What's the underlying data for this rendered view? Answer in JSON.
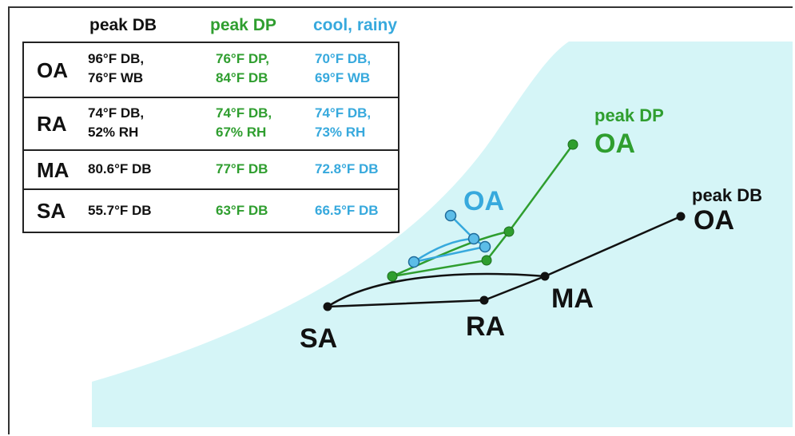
{
  "colors": {
    "background_region": "#d5f5f7",
    "black": "#111111",
    "green": "#2f9e2f",
    "blue": "#37a9dd"
  },
  "table": {
    "headers": {
      "peak_db": "peak DB",
      "peak_dp": "peak DP",
      "cool_rainy": "cool, rainy"
    },
    "rows": [
      {
        "label": "OA",
        "peak_db": [
          "96°F DB,",
          "76°F WB"
        ],
        "peak_dp": [
          "76°F DP,",
          "84°F DB"
        ],
        "cool_rainy": [
          "70°F DB,",
          "69°F WB"
        ]
      },
      {
        "label": "RA",
        "peak_db": [
          "74°F DB,",
          "52% RH"
        ],
        "peak_dp": [
          "74°F DB,",
          "67% RH"
        ],
        "cool_rainy": [
          "74°F DB,",
          "73% RH"
        ]
      },
      {
        "label": "MA",
        "peak_db": [
          "80.6°F DB"
        ],
        "peak_dp": [
          "77°F DB"
        ],
        "cool_rainy": [
          "72.8°F DB"
        ]
      },
      {
        "label": "SA",
        "peak_db": [
          "55.7°F DB"
        ],
        "peak_dp": [
          "63°F DB"
        ],
        "cool_rainy": [
          "66.5°F DB"
        ]
      }
    ]
  },
  "labels": {
    "sa": "SA",
    "ra": "RA",
    "ma": "MA",
    "oa_peak_db_caption": "peak DB",
    "oa_peak_db": "OA",
    "oa_peak_dp_caption": "peak DP",
    "oa_peak_dp": "OA",
    "oa_cool": "OA"
  }
}
